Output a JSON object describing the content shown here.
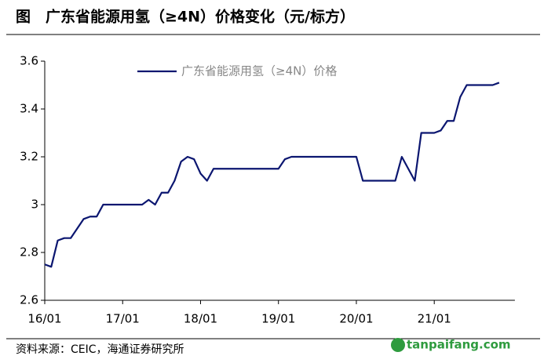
{
  "chart_data": {
    "type": "line",
    "title": "图　广东省能源用氢（≥4N）价格变化（元/标方）",
    "source": "资料来源：CEIC，海通证券研究所",
    "watermark": "tanpaifang.com",
    "categories": [
      "16/01",
      null,
      null,
      null,
      null,
      null,
      null,
      null,
      null,
      null,
      null,
      null,
      "17/01",
      null,
      null,
      null,
      null,
      null,
      null,
      null,
      null,
      null,
      null,
      null,
      "18/01",
      null,
      null,
      null,
      null,
      null,
      null,
      null,
      null,
      null,
      null,
      null,
      "19/01",
      null,
      null,
      null,
      null,
      null,
      null,
      null,
      null,
      null,
      null,
      null,
      "20/01",
      null,
      null,
      null,
      null,
      null,
      null,
      null,
      null,
      null,
      null,
      null,
      "21/01",
      null,
      null,
      null,
      null,
      null,
      null,
      null,
      null,
      null,
      null
    ],
    "series": [
      {
        "name": "广东省能源用氢（≥4N）价格",
        "color": "#0b1670",
        "values": [
          2.75,
          2.74,
          2.85,
          2.86,
          2.86,
          2.9,
          2.94,
          2.95,
          2.95,
          3.0,
          3.0,
          3.0,
          3.0,
          3.0,
          3.0,
          3.0,
          3.02,
          3.0,
          3.05,
          3.05,
          3.1,
          3.18,
          3.2,
          3.19,
          3.13,
          3.1,
          3.15,
          3.15,
          3.15,
          3.15,
          3.15,
          3.15,
          3.15,
          3.15,
          3.15,
          3.15,
          3.15,
          3.19,
          3.2,
          3.2,
          3.2,
          3.2,
          3.2,
          3.2,
          3.2,
          3.2,
          3.2,
          3.2,
          3.2,
          3.1,
          3.1,
          3.1,
          3.1,
          3.1,
          3.1,
          3.2,
          3.15,
          3.1,
          3.3,
          3.3,
          3.3,
          3.31,
          3.35,
          3.35,
          3.45,
          3.5,
          3.5,
          3.5,
          3.5,
          3.5,
          3.51
        ]
      }
    ],
    "ylim": [
      2.6,
      3.6
    ],
    "yticks": [
      2.6,
      2.8,
      3,
      3.2,
      3.4,
      3.6
    ],
    "grid": false
  }
}
